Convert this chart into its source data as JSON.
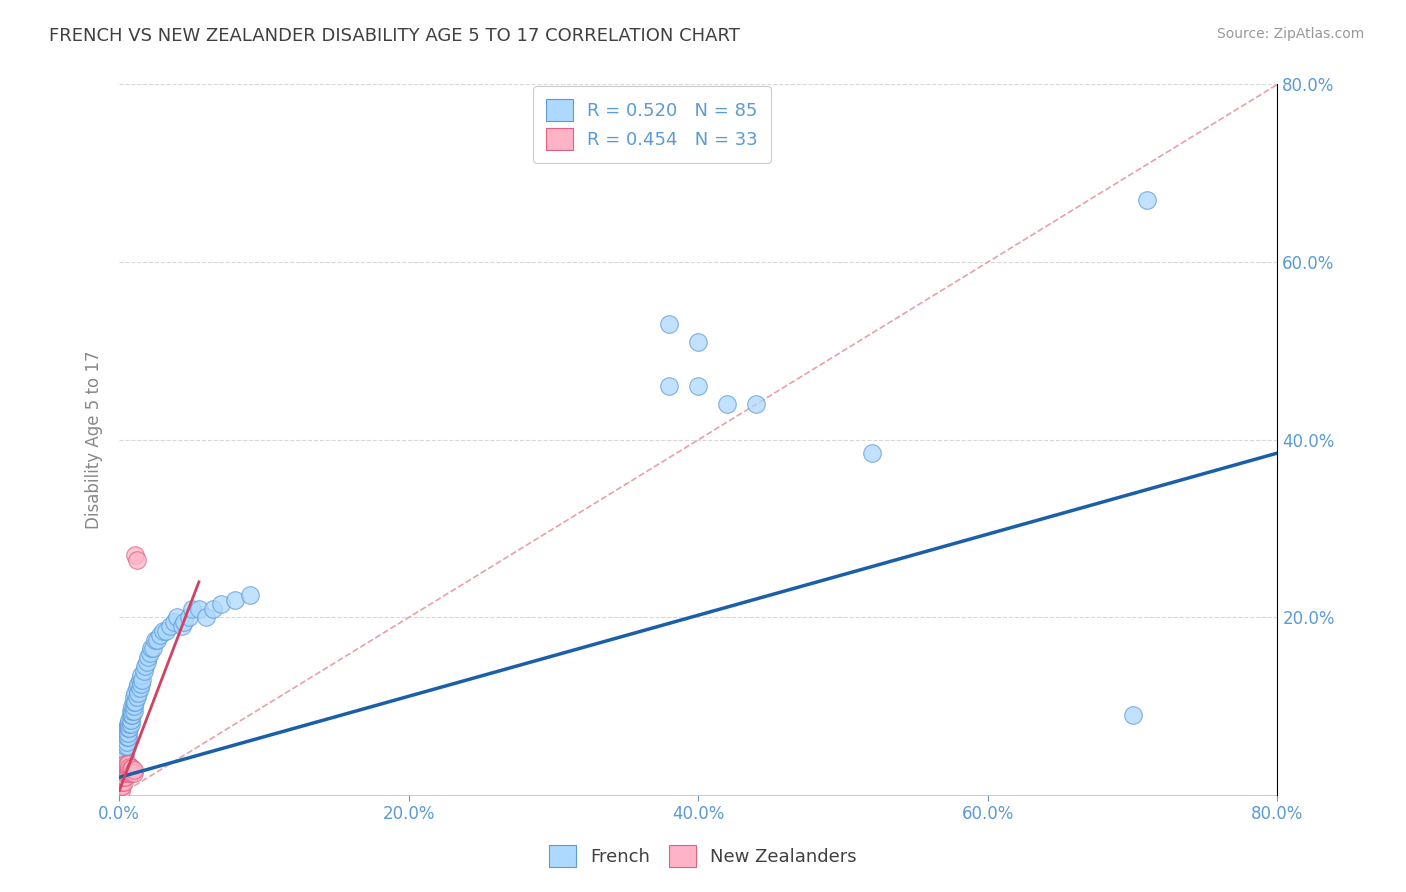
{
  "title": "FRENCH VS NEW ZEALANDER DISABILITY AGE 5 TO 17 CORRELATION CHART",
  "source": "Source: ZipAtlas.com",
  "ylabel": "Disability Age 5 to 17",
  "xlim": [
    0.0,
    0.8
  ],
  "ylim": [
    0.0,
    0.8
  ],
  "french_R": 0.52,
  "french_N": 85,
  "nz_R": 0.454,
  "nz_N": 33,
  "french_color": "#add8ff",
  "french_edge_color": "#5b9bd5",
  "nz_color": "#ffb3c6",
  "nz_edge_color": "#e06080",
  "french_line_color": "#1a5fa8",
  "nz_line_color": "#d44060",
  "diagonal_color": "#e8a0a8",
  "grid_color": "#d8d8d8",
  "title_color": "#404040",
  "axis_label_color": "#5b9bd5",
  "legend_text_color": "#5b9bd5",
  "background_color": "#ffffff",
  "french_line_x0": 0.0,
  "french_line_y0": 0.02,
  "french_line_x1": 0.8,
  "french_line_y1": 0.385,
  "nz_line_x0": 0.0,
  "nz_line_y0": 0.005,
  "nz_line_x1": 0.055,
  "nz_line_y1": 0.24,
  "french_x": [
    0.001,
    0.001,
    0.001,
    0.001,
    0.002,
    0.002,
    0.002,
    0.002,
    0.002,
    0.003,
    0.003,
    0.003,
    0.003,
    0.004,
    0.004,
    0.004,
    0.004,
    0.005,
    0.005,
    0.005,
    0.005,
    0.005,
    0.006,
    0.006,
    0.006,
    0.006,
    0.007,
    0.007,
    0.007,
    0.008,
    0.008,
    0.008,
    0.008,
    0.009,
    0.009,
    0.009,
    0.01,
    0.01,
    0.01,
    0.01,
    0.011,
    0.011,
    0.012,
    0.012,
    0.013,
    0.013,
    0.014,
    0.014,
    0.015,
    0.015,
    0.016,
    0.017,
    0.018,
    0.019,
    0.02,
    0.021,
    0.022,
    0.023,
    0.025,
    0.026,
    0.028,
    0.03,
    0.032,
    0.035,
    0.038,
    0.04,
    0.043,
    0.045,
    0.048,
    0.05,
    0.055,
    0.06,
    0.065,
    0.07,
    0.08,
    0.09,
    0.38,
    0.4,
    0.42,
    0.44,
    0.52,
    0.7,
    0.71,
    0.38,
    0.4
  ],
  "french_y": [
    0.01,
    0.015,
    0.02,
    0.025,
    0.02,
    0.025,
    0.03,
    0.035,
    0.04,
    0.035,
    0.04,
    0.045,
    0.05,
    0.045,
    0.05,
    0.055,
    0.06,
    0.055,
    0.06,
    0.065,
    0.07,
    0.075,
    0.065,
    0.07,
    0.075,
    0.08,
    0.075,
    0.08,
    0.085,
    0.08,
    0.085,
    0.09,
    0.095,
    0.09,
    0.095,
    0.1,
    0.095,
    0.1,
    0.105,
    0.11,
    0.105,
    0.115,
    0.11,
    0.12,
    0.115,
    0.125,
    0.12,
    0.13,
    0.125,
    0.135,
    0.13,
    0.14,
    0.145,
    0.15,
    0.155,
    0.16,
    0.165,
    0.165,
    0.175,
    0.175,
    0.18,
    0.185,
    0.185,
    0.19,
    0.195,
    0.2,
    0.19,
    0.195,
    0.2,
    0.21,
    0.21,
    0.2,
    0.21,
    0.215,
    0.22,
    0.225,
    0.46,
    0.46,
    0.44,
    0.44,
    0.385,
    0.09,
    0.67,
    0.53,
    0.51
  ],
  "nz_x": [
    0.001,
    0.001,
    0.001,
    0.001,
    0.001,
    0.002,
    0.002,
    0.002,
    0.002,
    0.003,
    0.003,
    0.003,
    0.003,
    0.004,
    0.004,
    0.004,
    0.004,
    0.005,
    0.005,
    0.005,
    0.006,
    0.006,
    0.006,
    0.007,
    0.007,
    0.008,
    0.008,
    0.009,
    0.009,
    0.01,
    0.01,
    0.011,
    0.012
  ],
  "nz_y": [
    0.005,
    0.01,
    0.015,
    0.02,
    0.025,
    0.01,
    0.015,
    0.02,
    0.025,
    0.015,
    0.02,
    0.025,
    0.03,
    0.02,
    0.025,
    0.03,
    0.035,
    0.025,
    0.03,
    0.035,
    0.025,
    0.03,
    0.035,
    0.028,
    0.032,
    0.025,
    0.03,
    0.025,
    0.03,
    0.025,
    0.028,
    0.27,
    0.265
  ]
}
